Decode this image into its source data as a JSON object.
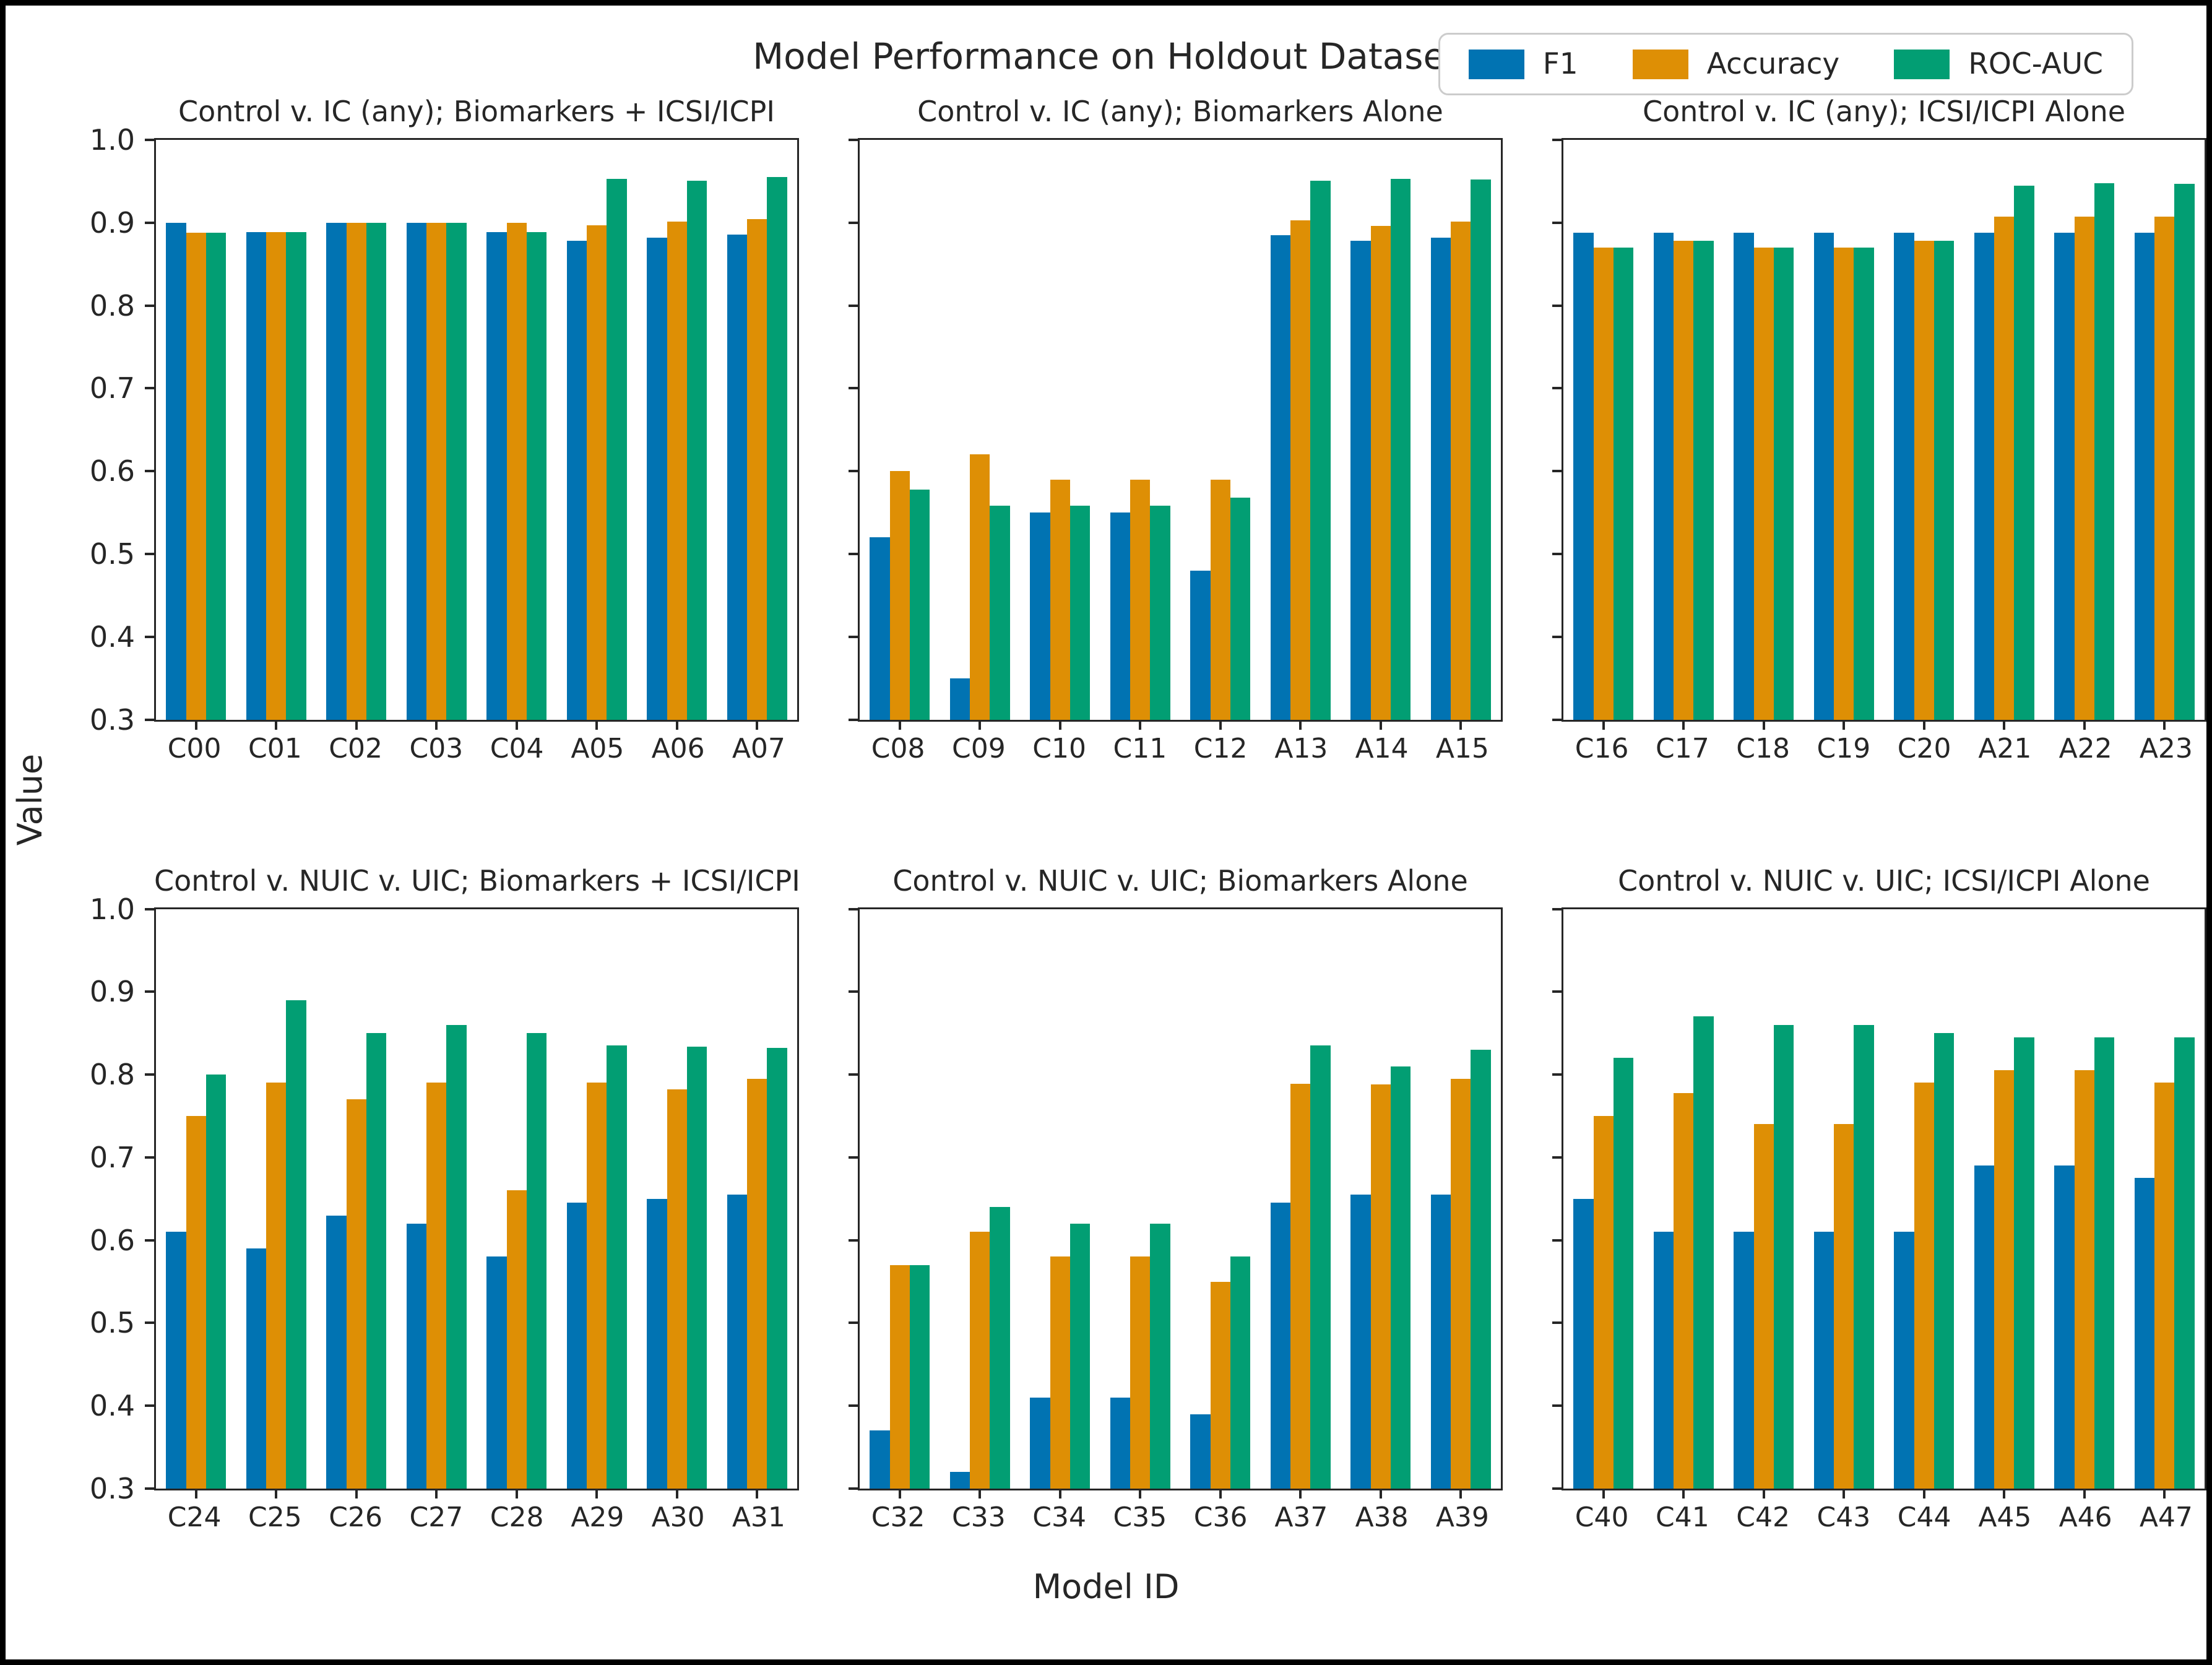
{
  "figure": {
    "title": "Model Performance on Holdout Dataset",
    "ylabel": "Value",
    "xlabel": "Model ID",
    "background": "#ffffff",
    "spine_color": "#262626"
  },
  "legend": {
    "items": [
      {
        "label": "F1",
        "color": "#0173b2"
      },
      {
        "label": "Accuracy",
        "color": "#de8f05"
      },
      {
        "label": "ROC-AUC",
        "color": "#029e73"
      }
    ]
  },
  "chart_data": [
    {
      "type": "bar",
      "title": "Control v. IC (any); Biomarkers + ICSI/ICPI",
      "categories": [
        "C00",
        "C01",
        "C02",
        "C03",
        "C04",
        "A05",
        "A06",
        "A07"
      ],
      "series": [
        {
          "name": "F1",
          "color": "#0173b2",
          "values": [
            0.9,
            0.889,
            0.9,
            0.9,
            0.889,
            0.878,
            0.882,
            0.886
          ]
        },
        {
          "name": "Accuracy",
          "color": "#de8f05",
          "values": [
            0.888,
            0.889,
            0.9,
            0.9,
            0.9,
            0.897,
            0.901,
            0.904
          ]
        },
        {
          "name": "ROC-AUC",
          "color": "#029e73",
          "values": [
            0.888,
            0.889,
            0.9,
            0.9,
            0.889,
            0.953,
            0.951,
            0.955
          ]
        }
      ],
      "ylim": [
        0.3,
        1.0
      ],
      "yticks": [
        1.0,
        0.9,
        0.8,
        0.7,
        0.6,
        0.5,
        0.4,
        0.3
      ],
      "show_ytick_labels": true
    },
    {
      "type": "bar",
      "title": "Control v. IC (any); Biomarkers Alone",
      "categories": [
        "C08",
        "C09",
        "C10",
        "C11",
        "C12",
        "A13",
        "A14",
        "A15"
      ],
      "series": [
        {
          "name": "F1",
          "color": "#0173b2",
          "values": [
            0.52,
            0.35,
            0.55,
            0.55,
            0.48,
            0.885,
            0.878,
            0.882
          ]
        },
        {
          "name": "Accuracy",
          "color": "#de8f05",
          "values": [
            0.6,
            0.62,
            0.59,
            0.59,
            0.59,
            0.903,
            0.896,
            0.901
          ]
        },
        {
          "name": "ROC-AUC",
          "color": "#029e73",
          "values": [
            0.578,
            0.558,
            0.558,
            0.558,
            0.568,
            0.951,
            0.953,
            0.952
          ]
        }
      ],
      "ylim": [
        0.3,
        1.0
      ],
      "yticks": [
        1.0,
        0.9,
        0.8,
        0.7,
        0.6,
        0.5,
        0.4,
        0.3
      ],
      "show_ytick_labels": false
    },
    {
      "type": "bar",
      "title": "Control v. IC (any); ICSI/ICPI Alone",
      "categories": [
        "C16",
        "C17",
        "C18",
        "C19",
        "C20",
        "A21",
        "A22",
        "A23"
      ],
      "series": [
        {
          "name": "F1",
          "color": "#0173b2",
          "values": [
            0.888,
            0.888,
            0.888,
            0.888,
            0.888,
            0.888,
            0.888,
            0.888
          ]
        },
        {
          "name": "Accuracy",
          "color": "#de8f05",
          "values": [
            0.87,
            0.878,
            0.87,
            0.87,
            0.878,
            0.907,
            0.907,
            0.907
          ]
        },
        {
          "name": "ROC-AUC",
          "color": "#029e73",
          "values": [
            0.87,
            0.878,
            0.87,
            0.87,
            0.878,
            0.945,
            0.948,
            0.947
          ]
        }
      ],
      "ylim": [
        0.3,
        1.0
      ],
      "yticks": [
        1.0,
        0.9,
        0.8,
        0.7,
        0.6,
        0.5,
        0.4,
        0.3
      ],
      "show_ytick_labels": false
    },
    {
      "type": "bar",
      "title": "Control v. NUIC v. UIC; Biomarkers + ICSI/ICPI",
      "categories": [
        "C24",
        "C25",
        "C26",
        "C27",
        "C28",
        "A29",
        "A30",
        "A31"
      ],
      "series": [
        {
          "name": "F1",
          "color": "#0173b2",
          "values": [
            0.61,
            0.59,
            0.63,
            0.62,
            0.58,
            0.645,
            0.65,
            0.655
          ]
        },
        {
          "name": "Accuracy",
          "color": "#de8f05",
          "values": [
            0.75,
            0.79,
            0.77,
            0.79,
            0.66,
            0.79,
            0.782,
            0.795
          ]
        },
        {
          "name": "ROC-AUC",
          "color": "#029e73",
          "values": [
            0.8,
            0.89,
            0.85,
            0.86,
            0.85,
            0.835,
            0.834,
            0.832
          ]
        }
      ],
      "ylim": [
        0.3,
        1.0
      ],
      "yticks": [
        1.0,
        0.9,
        0.8,
        0.7,
        0.6,
        0.5,
        0.4,
        0.3
      ],
      "show_ytick_labels": true
    },
    {
      "type": "bar",
      "title": "Control v. NUIC v. UIC; Biomarkers Alone",
      "categories": [
        "C32",
        "C33",
        "C34",
        "C35",
        "C36",
        "A37",
        "A38",
        "A39"
      ],
      "series": [
        {
          "name": "F1",
          "color": "#0173b2",
          "values": [
            0.37,
            0.32,
            0.41,
            0.41,
            0.39,
            0.645,
            0.655,
            0.655
          ]
        },
        {
          "name": "Accuracy",
          "color": "#de8f05",
          "values": [
            0.57,
            0.61,
            0.58,
            0.58,
            0.55,
            0.789,
            0.788,
            0.795
          ]
        },
        {
          "name": "ROC-AUC",
          "color": "#029e73",
          "values": [
            0.57,
            0.64,
            0.62,
            0.62,
            0.58,
            0.835,
            0.81,
            0.83
          ]
        }
      ],
      "ylim": [
        0.3,
        1.0
      ],
      "yticks": [
        1.0,
        0.9,
        0.8,
        0.7,
        0.6,
        0.5,
        0.4,
        0.3
      ],
      "show_ytick_labels": false
    },
    {
      "type": "bar",
      "title": "Control v. NUIC v. UIC; ICSI/ICPI Alone",
      "categories": [
        "C40",
        "C41",
        "C42",
        "C43",
        "C44",
        "A45",
        "A46",
        "A47"
      ],
      "series": [
        {
          "name": "F1",
          "color": "#0173b2",
          "values": [
            0.65,
            0.61,
            0.61,
            0.61,
            0.61,
            0.69,
            0.69,
            0.675
          ]
        },
        {
          "name": "Accuracy",
          "color": "#de8f05",
          "values": [
            0.75,
            0.778,
            0.74,
            0.74,
            0.79,
            0.805,
            0.805,
            0.79
          ]
        },
        {
          "name": "ROC-AUC",
          "color": "#029e73",
          "values": [
            0.82,
            0.87,
            0.86,
            0.86,
            0.85,
            0.845,
            0.845,
            0.845
          ]
        }
      ],
      "ylim": [
        0.3,
        1.0
      ],
      "yticks": [
        1.0,
        0.9,
        0.8,
        0.7,
        0.6,
        0.5,
        0.4,
        0.3
      ],
      "show_ytick_labels": false
    }
  ]
}
